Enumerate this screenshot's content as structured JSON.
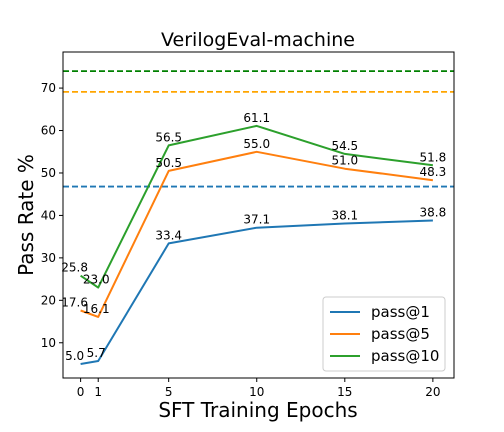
{
  "chart_data": {
    "type": "line",
    "title": "VerilogEval-machine",
    "xlabel": "SFT Training Epochs",
    "ylabel": "Pass Rate %",
    "x": [
      0,
      1,
      5,
      10,
      15,
      20
    ],
    "xticks": [
      "0",
      "1",
      "5",
      "10",
      "15",
      "20"
    ],
    "yticks": [
      "10",
      "20",
      "30",
      "40",
      "50",
      "60",
      "70"
    ],
    "xlim": [
      -1,
      21.2
    ],
    "ylim": [
      1.7,
      78.5
    ],
    "grid": false,
    "legend_position": "lower-right",
    "series": [
      {
        "name": "pass@1",
        "color": "#1f77b4",
        "values": [
          5.0,
          5.7,
          33.4,
          37.1,
          38.1,
          38.8
        ],
        "labels": [
          "5.0",
          "5.7",
          "33.4",
          "37.1",
          "38.1",
          "38.8"
        ]
      },
      {
        "name": "pass@5",
        "color": "#ff7f0e",
        "values": [
          17.6,
          16.1,
          50.5,
          55.0,
          51.0,
          48.3
        ],
        "labels": [
          "17.6",
          "16.1",
          "50.5",
          "55.0",
          "51.0",
          "48.3"
        ]
      },
      {
        "name": "pass@10",
        "color": "#2ca02c",
        "values": [
          25.8,
          23.0,
          56.5,
          61.1,
          54.5,
          51.8
        ],
        "labels": [
          "25.8",
          "23.0",
          "56.5",
          "61.1",
          "54.5",
          "51.8"
        ]
      }
    ],
    "reference_lines": [
      {
        "value": 46.8,
        "color": "#1f77b4",
        "style": "dashed"
      },
      {
        "value": 69.1,
        "color": "#ffa500",
        "style": "dashed"
      },
      {
        "value": 74.0,
        "color": "#008000",
        "style": "dashed"
      }
    ]
  }
}
